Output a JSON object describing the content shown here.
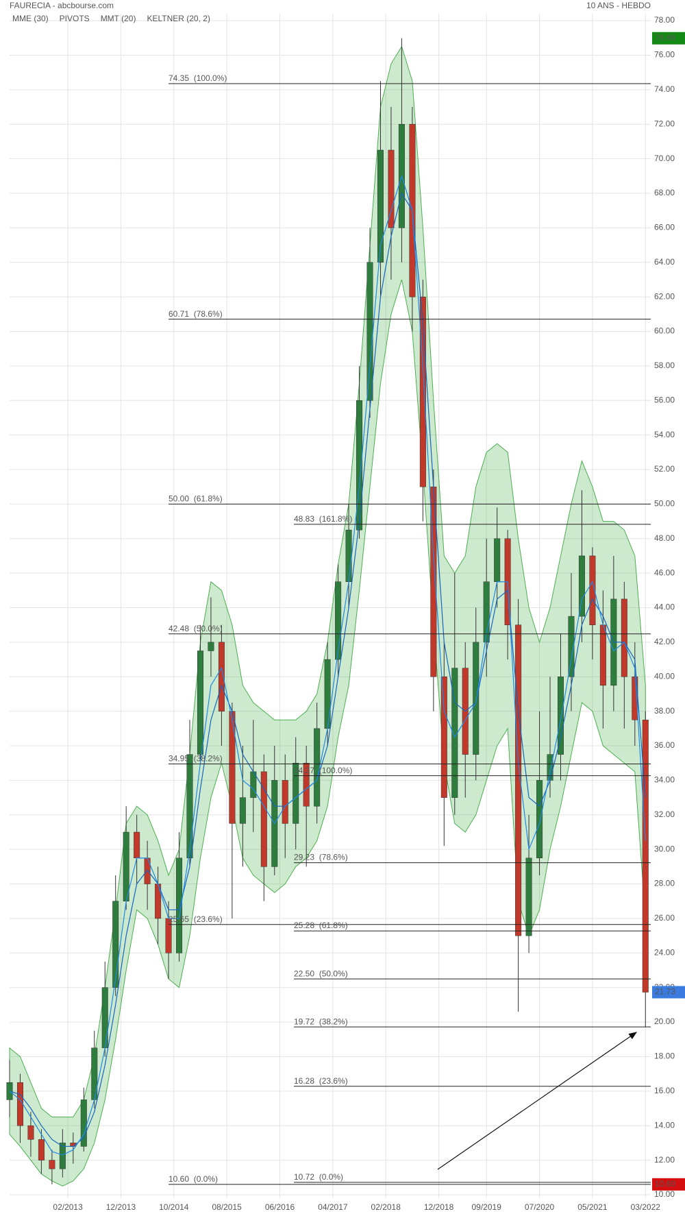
{
  "chart_data": {
    "type": "candlestick",
    "title": "FAURECIA - abcbourse.com",
    "subtitle": "10 ANS - HEBDO",
    "x": [
      "2012-03",
      "2012-05",
      "2012-07",
      "2012-09",
      "2012-11",
      "2013-01",
      "2013-03",
      "2013-05",
      "2013-07",
      "2013-09",
      "2013-11",
      "2014-01",
      "2014-03",
      "2014-05",
      "2014-07",
      "2014-09",
      "2014-11",
      "2015-01",
      "2015-03",
      "2015-05",
      "2015-07",
      "2015-09",
      "2015-11",
      "2016-01",
      "2016-03",
      "2016-05",
      "2016-07",
      "2016-09",
      "2016-11",
      "2017-01",
      "2017-03",
      "2017-05",
      "2017-07",
      "2017-09",
      "2017-11",
      "2018-01",
      "2018-03",
      "2018-05",
      "2018-07",
      "2018-09",
      "2018-11",
      "2019-01",
      "2019-03",
      "2019-05",
      "2019-07",
      "2019-09",
      "2019-11",
      "2020-01",
      "2020-03",
      "2020-05",
      "2020-07",
      "2020-09",
      "2020-11",
      "2021-01",
      "2021-03",
      "2021-05",
      "2021-07",
      "2021-09",
      "2021-11",
      "2022-01",
      "2022-03"
    ],
    "open": [
      15.5,
      16.5,
      14.0,
      13.2,
      12.0,
      11.5,
      13.0,
      12.8,
      15.5,
      18.5,
      22.0,
      27.0,
      31.0,
      29.5,
      28.0,
      26.0,
      24.0,
      29.5,
      35.5,
      41.5,
      42.0,
      38.0,
      31.5,
      33.0,
      34.5,
      29.0,
      34.0,
      31.5,
      35.0,
      32.5,
      37.0,
      41.0,
      45.5,
      48.5,
      56.0,
      64.0,
      70.5,
      66.0,
      72.0,
      62.0,
      51.0,
      40.0,
      33.0,
      40.5,
      35.5,
      42.0,
      45.5,
      48.0,
      43.0,
      25.0,
      29.5,
      34.0,
      35.5,
      40.0,
      43.5,
      47.0,
      43.0,
      39.5,
      44.5,
      40.0,
      37.5
    ],
    "high": [
      17.8,
      17.0,
      14.8,
      13.8,
      12.6,
      13.8,
      13.6,
      16.2,
      19.5,
      23.5,
      28.5,
      32.5,
      32.0,
      30.5,
      29.0,
      27.0,
      31.0,
      37.5,
      43.0,
      44.6,
      43.0,
      38.5,
      36.0,
      37.5,
      35.5,
      36.0,
      35.5,
      36.5,
      36.0,
      38.5,
      42.0,
      46.5,
      50.0,
      58.0,
      66.0,
      74.5,
      73.0,
      76.98,
      73.0,
      63.0,
      52.0,
      42.0,
      46.0,
      42.0,
      44.0,
      48.0,
      49.8,
      48.5,
      44.5,
      32.0,
      38.0,
      40.0,
      42.5,
      46.0,
      50.8,
      47.5,
      45.0,
      47.0,
      45.5,
      42.0,
      38.0
    ],
    "low": [
      14.5,
      13.0,
      12.2,
      11.2,
      10.6,
      11.0,
      11.8,
      12.5,
      15.0,
      18.0,
      21.5,
      26.5,
      28.0,
      26.5,
      24.5,
      22.5,
      23.5,
      29.0,
      35.0,
      40.0,
      36.0,
      26.0,
      29.0,
      31.0,
      27.0,
      28.5,
      29.5,
      30.0,
      29.0,
      31.5,
      36.0,
      40.0,
      44.0,
      48.0,
      55.0,
      62.0,
      63.0,
      64.0,
      60.0,
      49.0,
      38.0,
      30.2,
      32.0,
      33.0,
      34.0,
      40.0,
      44.0,
      41.0,
      20.6,
      24.0,
      28.5,
      33.0,
      34.0,
      38.0,
      42.0,
      41.0,
      37.0,
      38.0,
      37.0,
      36.0,
      19.7
    ],
    "close": [
      16.5,
      14.0,
      13.2,
      12.0,
      11.5,
      13.0,
      12.8,
      15.5,
      18.5,
      22.0,
      27.0,
      31.0,
      29.5,
      28.0,
      26.0,
      24.0,
      29.5,
      35.5,
      41.5,
      42.0,
      38.0,
      31.5,
      33.0,
      34.5,
      29.0,
      34.0,
      31.5,
      35.0,
      32.5,
      37.0,
      41.0,
      45.5,
      48.5,
      56.0,
      64.0,
      70.5,
      66.0,
      72.0,
      62.0,
      51.0,
      40.0,
      33.0,
      40.5,
      35.5,
      42.0,
      45.5,
      48.0,
      43.0,
      25.0,
      29.5,
      34.0,
      35.5,
      40.0,
      43.5,
      47.0,
      43.0,
      39.5,
      44.5,
      40.0,
      37.5,
      21.73
    ],
    "up_color": "#2e7d3e",
    "down_color": "#c0392b",
    "series": [
      {
        "name": "MME (30)",
        "color": "#1565c0",
        "values": [
          16.0,
          15.8,
          15.0,
          14.0,
          13.2,
          12.8,
          12.8,
          13.3,
          14.8,
          17.5,
          21.0,
          25.0,
          28.0,
          28.8,
          28.0,
          26.5,
          26.5,
          29.0,
          33.5,
          37.5,
          39.5,
          38.0,
          35.5,
          34.5,
          33.5,
          32.5,
          32.5,
          33.0,
          33.5,
          34.0,
          36.0,
          40.0,
          44.0,
          49.0,
          55.5,
          62.0,
          65.5,
          68.0,
          67.0,
          60.5,
          51.0,
          42.0,
          38.5,
          38.0,
          38.5,
          41.5,
          44.5,
          45.0,
          38.0,
          33.0,
          32.5,
          34.0,
          36.5,
          39.5,
          43.0,
          44.5,
          43.5,
          42.0,
          42.0,
          41.0,
          33.0
        ]
      },
      {
        "name": "PIVOTS",
        "color": "#555555"
      },
      {
        "name": "MMT (20)",
        "color": "#1e88e5",
        "values": [
          16.0,
          15.5,
          14.5,
          13.5,
          12.5,
          12.3,
          12.6,
          13.5,
          15.5,
          18.5,
          22.5,
          27.0,
          29.5,
          29.5,
          28.0,
          26.0,
          26.0,
          30.0,
          35.0,
          39.5,
          40.5,
          37.5,
          34.0,
          33.5,
          32.5,
          31.5,
          32.5,
          33.0,
          33.5,
          34.0,
          37.0,
          41.5,
          45.5,
          51.0,
          58.0,
          65.0,
          67.0,
          69.0,
          67.0,
          58.0,
          47.0,
          38.0,
          36.5,
          37.5,
          38.5,
          42.5,
          45.5,
          45.5,
          35.0,
          30.0,
          31.5,
          34.5,
          37.5,
          41.0,
          44.5,
          45.5,
          43.0,
          41.5,
          42.0,
          40.5,
          30.5
        ]
      },
      {
        "name": "KELTNER (20, 2)",
        "color": "#4caf50",
        "upper": [
          18.5,
          18.0,
          16.5,
          15.0,
          14.5,
          14.5,
          14.5,
          15.5,
          18.0,
          22.0,
          26.5,
          31.5,
          32.5,
          32.0,
          30.5,
          28.5,
          30.0,
          35.5,
          42.0,
          45.5,
          45.0,
          43.0,
          39.5,
          38.5,
          38.0,
          37.5,
          37.5,
          37.5,
          38.0,
          39.0,
          42.0,
          46.5,
          50.0,
          57.0,
          65.0,
          73.0,
          75.5,
          76.5,
          74.5,
          66.0,
          56.0,
          47.0,
          46.0,
          47.0,
          51.0,
          53.0,
          53.5,
          53.0,
          48.0,
          44.0,
          42.0,
          44.0,
          47.0,
          50.0,
          52.5,
          51.0,
          49.0,
          49.0,
          48.5,
          47.0,
          39.5
        ],
        "lower": [
          13.5,
          12.8,
          12.0,
          11.2,
          10.8,
          10.5,
          10.8,
          11.5,
          13.0,
          15.5,
          19.0,
          23.0,
          26.5,
          26.0,
          24.5,
          22.5,
          22.0,
          25.0,
          29.5,
          33.0,
          35.0,
          32.5,
          29.5,
          28.5,
          28.0,
          27.5,
          28.0,
          29.0,
          29.5,
          30.5,
          32.5,
          36.5,
          39.5,
          45.0,
          51.0,
          57.0,
          61.0,
          63.0,
          60.0,
          52.0,
          43.0,
          35.0,
          31.5,
          31.0,
          32.0,
          34.0,
          36.0,
          37.0,
          27.0,
          25.0,
          26.5,
          30.0,
          32.5,
          35.5,
          38.5,
          38.0,
          36.0,
          35.5,
          35.0,
          34.5,
          26.0
        ]
      }
    ],
    "fibonacci": [
      {
        "levels": [
          {
            "value": 74.35,
            "label": "74.35  (100.0%)"
          },
          {
            "value": 60.71,
            "label": "60.71  (78.6%)"
          },
          {
            "value": 50.0,
            "label": "50.00  (61.8%)"
          },
          {
            "value": 42.48,
            "label": "42.48  (50.0%)"
          },
          {
            "value": 34.95,
            "label": "34.95  (38.2%)"
          },
          {
            "value": 25.65,
            "label": "25.65  (23.6%)"
          },
          {
            "value": 10.6,
            "label": "10.60  (0.0%)"
          }
        ]
      },
      {
        "levels": [
          {
            "value": 48.83,
            "label": "48.83  (161.8%)"
          },
          {
            "value": 34.27,
            "label": "34.27  (100.0%)"
          },
          {
            "value": 29.23,
            "label": "29.23  (78.6%)"
          },
          {
            "value": 25.28,
            "label": "25.28  (61.8%)"
          },
          {
            "value": 22.5,
            "label": "22.50  (50.0%)"
          },
          {
            "value": 19.72,
            "label": "19.72  (38.2%)"
          },
          {
            "value": 16.28,
            "label": "16.28  (23.6%)"
          },
          {
            "value": 10.72,
            "label": "10.72  (0.0%)"
          }
        ]
      }
    ],
    "badges": [
      {
        "value": 76.98,
        "label": "76.98",
        "color": "#138a13"
      },
      {
        "value": 21.73,
        "label": "21.73",
        "color": "#3b7be0"
      },
      {
        "value": 10.6,
        "label": "10.60",
        "color": "#d50f0f"
      }
    ],
    "xlim": [
      "2012-03",
      "2022-04"
    ],
    "xticks": [
      {
        "value": "2013-02",
        "label": "02/2013"
      },
      {
        "value": "2013-12",
        "label": "12/2013"
      },
      {
        "value": "2014-10",
        "label": "10/2014"
      },
      {
        "value": "2015-08",
        "label": "08/2015"
      },
      {
        "value": "2016-06",
        "label": "06/2016"
      },
      {
        "value": "2017-04",
        "label": "04/2017"
      },
      {
        "value": "2018-02",
        "label": "02/2018"
      },
      {
        "value": "2018-12",
        "label": "12/2018"
      },
      {
        "value": "2019-09",
        "label": "09/2019"
      },
      {
        "value": "2020-07",
        "label": "07/2020"
      },
      {
        "value": "2021-05",
        "label": "05/2021"
      },
      {
        "value": "2022-03",
        "label": "03/2022"
      }
    ],
    "ylim": [
      9.8,
      78.4
    ],
    "yticks": [
      {
        "value": 10,
        "label": "10.00"
      },
      {
        "value": 12,
        "label": "12.00"
      },
      {
        "value": 14,
        "label": "14.00"
      },
      {
        "value": 16,
        "label": "16.00"
      },
      {
        "value": 18,
        "label": "18.00"
      },
      {
        "value": 20,
        "label": "20.00"
      },
      {
        "value": 22,
        "label": "22.00"
      },
      {
        "value": 24,
        "label": "24.00"
      },
      {
        "value": 26,
        "label": "26.00"
      },
      {
        "value": 28,
        "label": "28.00"
      },
      {
        "value": 30,
        "label": "30.00"
      },
      {
        "value": 32,
        "label": "32.00"
      },
      {
        "value": 34,
        "label": "34.00"
      },
      {
        "value": 36,
        "label": "36.00"
      },
      {
        "value": 38,
        "label": "38.00"
      },
      {
        "value": 40,
        "label": "40.00"
      },
      {
        "value": 42,
        "label": "42.00"
      },
      {
        "value": 44,
        "label": "44.00"
      },
      {
        "value": 46,
        "label": "46.00"
      },
      {
        "value": 48,
        "label": "48.00"
      },
      {
        "value": 50,
        "label": "50.00"
      },
      {
        "value": 52,
        "label": "52.00"
      },
      {
        "value": 54,
        "label": "54.00"
      },
      {
        "value": 56,
        "label": "56.00"
      },
      {
        "value": 58,
        "label": "58.00"
      },
      {
        "value": 60,
        "label": "60.00"
      },
      {
        "value": 62,
        "label": "62.00"
      },
      {
        "value": 64,
        "label": "64.00"
      },
      {
        "value": 66,
        "label": "66.00"
      },
      {
        "value": 68,
        "label": "68.00"
      },
      {
        "value": 70,
        "label": "70.00"
      },
      {
        "value": 72,
        "label": "72.00"
      },
      {
        "value": 74,
        "label": "74.00"
      },
      {
        "value": 76,
        "label": "76.00"
      },
      {
        "value": 78,
        "label": "78.00"
      }
    ],
    "grid": true
  }
}
